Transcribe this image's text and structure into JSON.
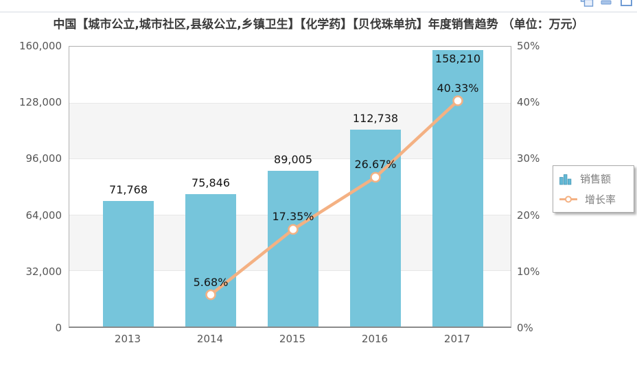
{
  "window_controls": {
    "icons": [
      "cascade-windows-icon",
      "minimize-icon",
      "maximize-icon"
    ]
  },
  "colors": {
    "bar_fill": "#76C5DB",
    "line": "#F4B183",
    "marker_fill": "#FFFFFF",
    "band": "#F5F5F5",
    "gridline": "#E7E7E7",
    "plot_border": "#B0B0B0",
    "axis_text": "#565656",
    "data_label_text": "#141414",
    "legend_text": "#7E7E7E",
    "control_icon_blue": "#6F9BD4"
  },
  "chart_data": {
    "type": "bar",
    "title": "中国【城市公立,城市社区,县级公立,乡镇卫生】【化学药】【贝伐珠单抗】年度销售趋势 （单位：万元）",
    "categories": [
      "2013",
      "2014",
      "2015",
      "2016",
      "2017"
    ],
    "series": [
      {
        "name": "销售额",
        "kind": "column",
        "axis": "left",
        "color": "#76C5DB",
        "values": [
          71768,
          75846,
          89005,
          112738,
          158210
        ],
        "data_labels": [
          "71,768",
          "75,846",
          "89,005",
          "112,738",
          "158,210"
        ]
      },
      {
        "name": "增长率",
        "kind": "line",
        "axis": "right",
        "color": "#F4B183",
        "values": [
          null,
          5.68,
          17.35,
          26.67,
          40.33
        ],
        "data_labels": [
          null,
          "5.68%",
          "17.35%",
          "26.67%",
          "40.33%"
        ]
      }
    ],
    "left_axis": {
      "min": 0,
      "max": 160000,
      "tick_labels": [
        "160,000",
        "128,000",
        "96,000",
        "64,000",
        "32,000",
        "0"
      ]
    },
    "right_axis": {
      "min": 0,
      "max": 50,
      "tick_labels": [
        "50%",
        "40%",
        "30%",
        "20%",
        "10%",
        "0%"
      ]
    },
    "legend": {
      "position": "middle-right",
      "items": [
        "销售额",
        "增长率"
      ]
    },
    "grid": {
      "horizontal_gridlines": true,
      "alternate_bands": true
    }
  }
}
